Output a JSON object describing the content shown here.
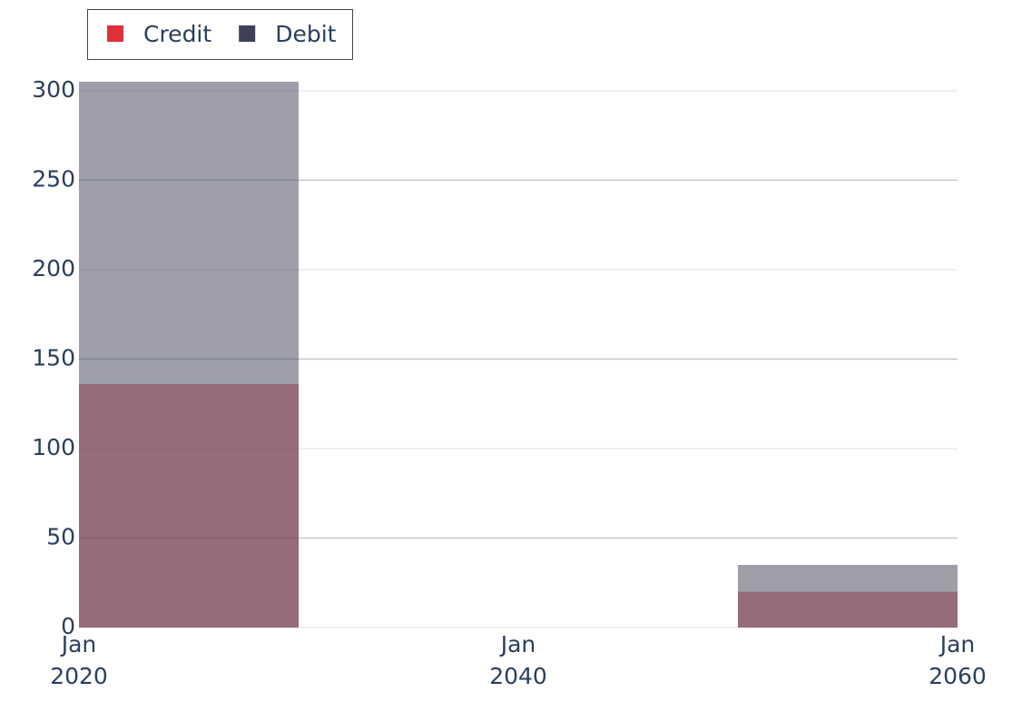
{
  "chart_data": {
    "type": "histogram",
    "bins": [
      2020,
      2030,
      2040,
      2050,
      2060
    ],
    "series": [
      {
        "name": "Credit",
        "color": "#e0303a",
        "values": [
          136,
          0,
          0,
          20
        ]
      },
      {
        "name": "Debit",
        "color": "#3d4058",
        "values": [
          305,
          0,
          0,
          35
        ]
      }
    ],
    "opacity": 0.5,
    "xlim": [
      2020,
      2060
    ],
    "xticks": [
      {
        "value": 2020,
        "label": "Jan 2020"
      },
      {
        "value": 2040,
        "label": "Jan 2040"
      },
      {
        "value": 2060,
        "label": "Jan 2060"
      }
    ],
    "ylim": [
      0,
      305
    ],
    "yticks": [
      0,
      50,
      100,
      150,
      200,
      250,
      300
    ],
    "grid": true,
    "legend": "top-left"
  }
}
